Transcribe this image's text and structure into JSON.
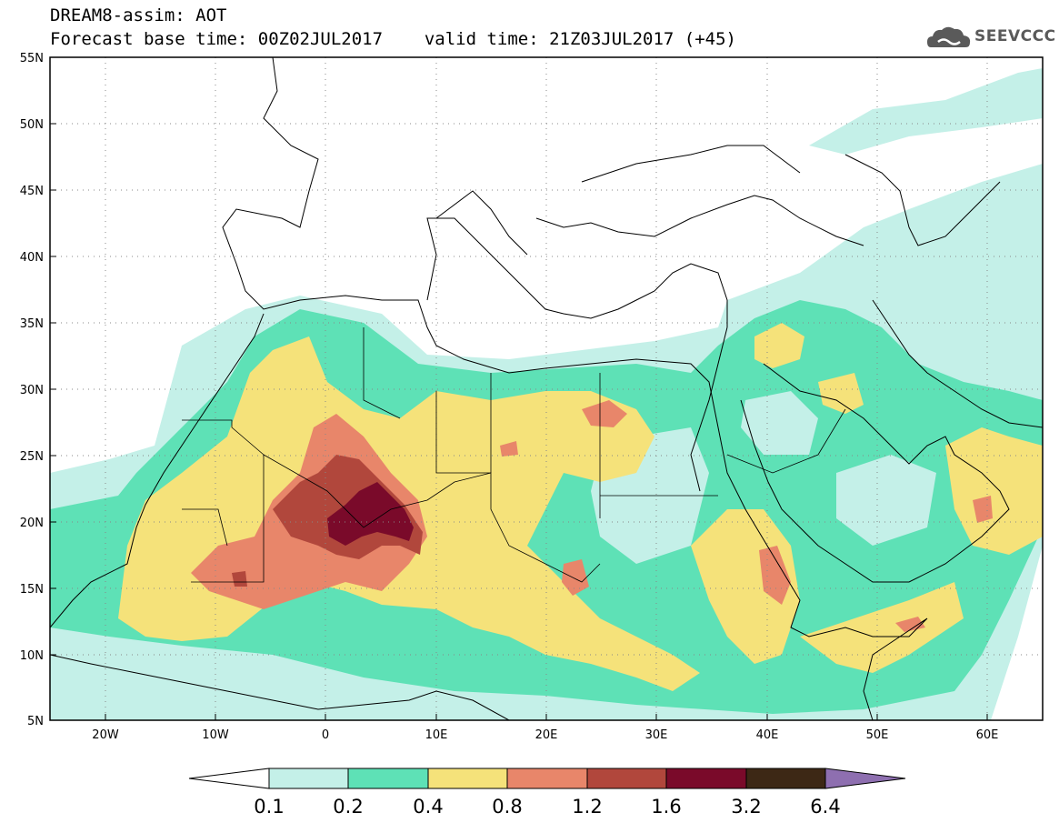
{
  "header": {
    "title": "DREAM8-assim: AOT",
    "base_time_label": "Forecast base time: 00Z02JUL2017",
    "valid_time_label": "valid time: 21Z03JUL2017 (+45)"
  },
  "logo": {
    "text": "SEEVCCC",
    "icon": "cloud-icon"
  },
  "map": {
    "lon_range": [
      -25,
      65
    ],
    "lat_range": [
      5,
      55
    ],
    "lat_ticks": [
      "55N",
      "50N",
      "45N",
      "40N",
      "35N",
      "30N",
      "25N",
      "20N",
      "15N",
      "10N",
      "5N"
    ],
    "lon_ticks": [
      "20W",
      "10W",
      "0",
      "10E",
      "20E",
      "30E",
      "40E",
      "50E",
      "60E"
    ],
    "gridlines": "dotted"
  },
  "colorbar": {
    "labels": [
      "0.1",
      "0.2",
      "0.4",
      "0.8",
      "1.2",
      "1.6",
      "3.2",
      "6.4"
    ],
    "colors": [
      "#ffffff",
      "#c4f0e8",
      "#5ee1b6",
      "#f5e27a",
      "#e8866a",
      "#b1473c",
      "#7a0a2a",
      "#3d2815",
      "#8e6fb0"
    ]
  },
  "legend_colors": {
    "c1": "#c4f0e8",
    "c2": "#5ee1b6",
    "c3": "#f5e27a",
    "c4": "#e8866a",
    "c5": "#b1473c",
    "c6": "#7a0a2a"
  }
}
